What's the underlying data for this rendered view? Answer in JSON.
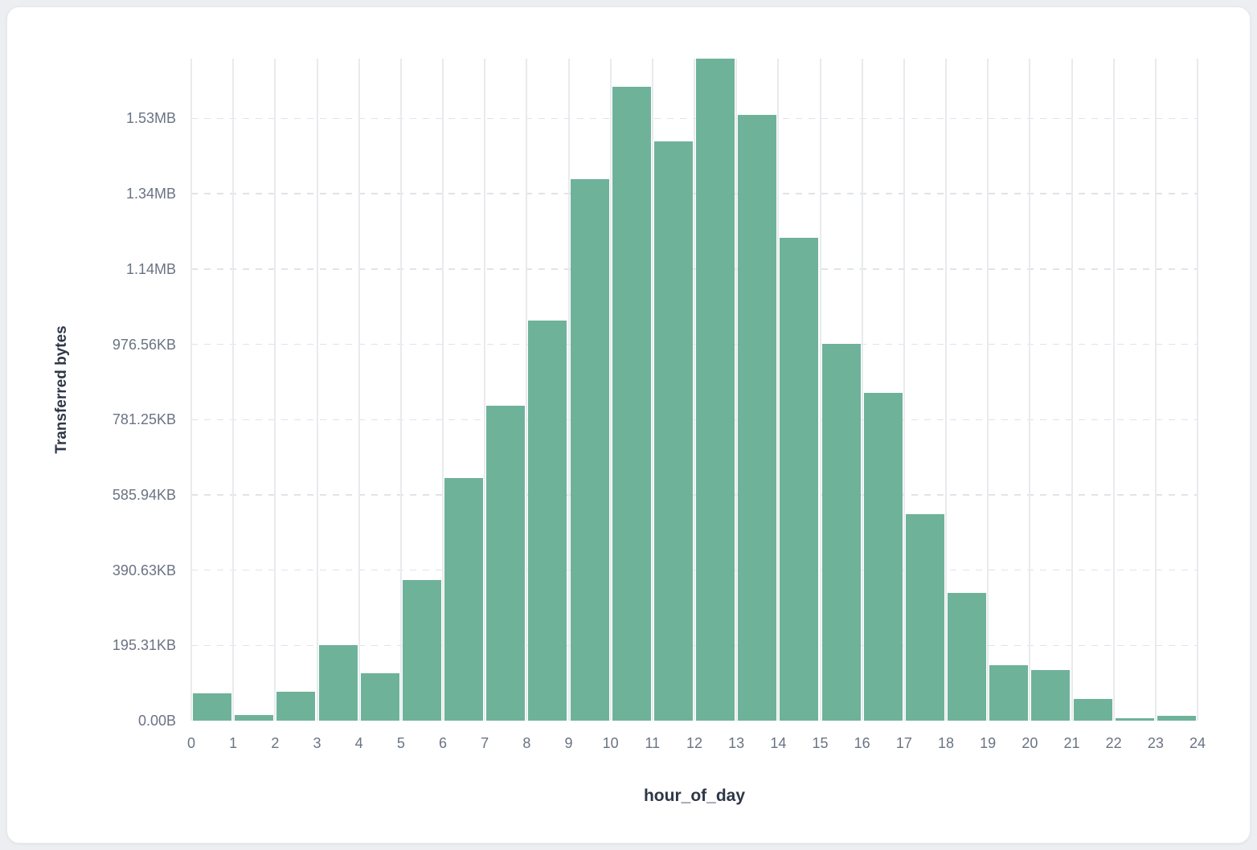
{
  "colors": {
    "page_bg": "#eceef1",
    "card_bg": "#ffffff",
    "bar_color": "#6eb29a",
    "grid_v": "#e8eaee",
    "grid_h": "#e0e3e9",
    "tick_text": "#6a7383",
    "title_text": "#2e3747"
  },
  "chart_data": {
    "type": "bar",
    "title": "",
    "xlabel": "hour_of_day",
    "ylabel": "Transferred bytes",
    "grid": true,
    "legend": false,
    "bin_width": 1,
    "x_ticks": [
      "0",
      "1",
      "2",
      "3",
      "4",
      "5",
      "6",
      "7",
      "8",
      "9",
      "10",
      "11",
      "12",
      "13",
      "14",
      "15",
      "16",
      "17",
      "18",
      "19",
      "20",
      "21",
      "22",
      "23",
      "24"
    ],
    "y_ticks": [
      {
        "value": 0,
        "label": "0.00B"
      },
      {
        "value": 200000,
        "label": "195.31KB"
      },
      {
        "value": 400000,
        "label": "390.63KB"
      },
      {
        "value": 600000,
        "label": "585.94KB"
      },
      {
        "value": 800000,
        "label": "781.25KB"
      },
      {
        "value": 1000000,
        "label": "976.56KB"
      },
      {
        "value": 1200000,
        "label": "1.14MB"
      },
      {
        "value": 1400000,
        "label": "1.34MB"
      },
      {
        "value": 1600000,
        "label": "1.53MB"
      }
    ],
    "xlim": [
      0,
      24
    ],
    "ylim": [
      0,
      1759000
    ],
    "y_units": "bytes",
    "categories": [
      0,
      1,
      2,
      3,
      4,
      5,
      6,
      7,
      8,
      9,
      10,
      11,
      12,
      13,
      14,
      15,
      16,
      17,
      18,
      19,
      20,
      21,
      22,
      23
    ],
    "values": [
      72000,
      15000,
      77000,
      201000,
      125000,
      374000,
      644000,
      836000,
      1063000,
      1439000,
      1685000,
      1539000,
      1759000,
      1610000,
      1283000,
      1002000,
      870000,
      548000,
      339000,
      147000,
      134000,
      57000,
      6000,
      13000
    ]
  }
}
